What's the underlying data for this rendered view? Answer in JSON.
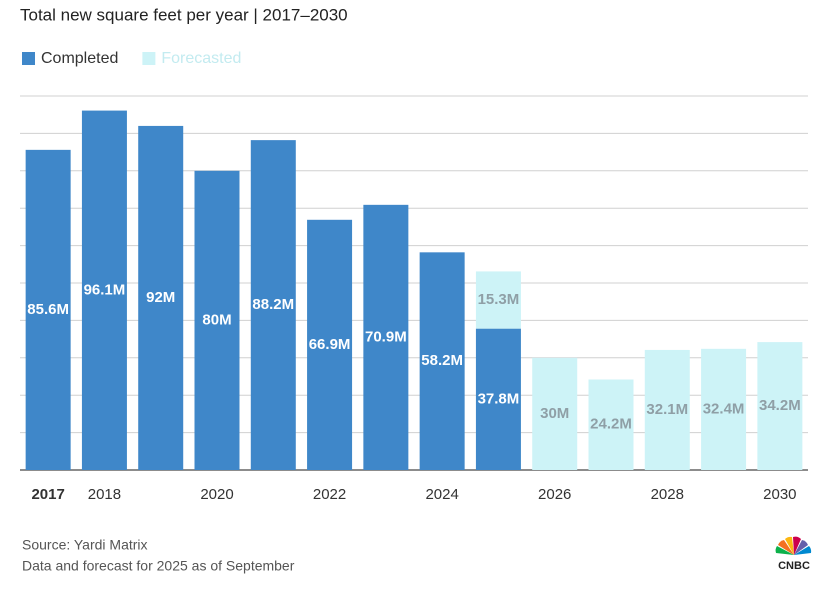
{
  "chart_data": {
    "type": "bar",
    "stacked": true,
    "title": "Total new square feet per year | 2017–2030",
    "categories": [
      "2017",
      "2018",
      null,
      "2020",
      null,
      "2022",
      null,
      "2024",
      null,
      "2026",
      null,
      "2028",
      null,
      "2030"
    ],
    "series": [
      {
        "name": "Completed",
        "color": "#3f87c9",
        "label_color": "#ffffff",
        "values": [
          85.6,
          96.1,
          92,
          80,
          88.2,
          66.9,
          70.9,
          58.2,
          37.8,
          null,
          null,
          null,
          null,
          null
        ],
        "value_labels": [
          "85.6M",
          "96.1M",
          "92M",
          "80M",
          "88.2M",
          "66.9M",
          "70.9M",
          "58.2M",
          "37.8M",
          null,
          null,
          null,
          null,
          null
        ]
      },
      {
        "name": "Forecasted",
        "color": "#cdf3f7",
        "label_color": "#8f9fa6",
        "values": [
          null,
          null,
          null,
          null,
          null,
          null,
          null,
          null,
          15.3,
          30,
          24.2,
          32.1,
          32.4,
          34.2
        ],
        "value_labels": [
          null,
          null,
          null,
          null,
          null,
          null,
          null,
          null,
          "15.3M",
          "30M",
          "24.2M",
          "32.1M",
          "32.4M",
          "34.2M"
        ]
      }
    ],
    "ylim": [
      0,
      100
    ],
    "yticks": [
      0,
      10,
      20,
      30,
      40,
      50,
      60,
      70,
      80,
      90,
      100
    ],
    "grid": true,
    "legend": "top-left",
    "notes": [
      "Source: Yardi Matrix",
      "Data and forecast for 2025 as of September"
    ],
    "logo": "CNBC"
  }
}
